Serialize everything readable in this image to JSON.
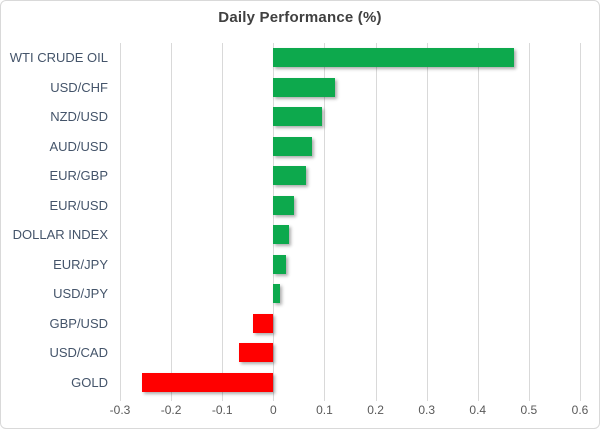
{
  "chart_data": {
    "type": "bar",
    "orientation": "horizontal",
    "title": "Daily Performance (%)",
    "categories": [
      "WTI CRUDE OIL",
      "USD/CHF",
      "NZD/USD",
      "AUD/USD",
      "EUR/GBP",
      "EUR/USD",
      "DOLLAR INDEX",
      "EUR/JPY",
      "USD/JPY",
      "GBP/USD",
      "USD/CAD",
      "GOLD"
    ],
    "values": [
      0.47,
      0.12,
      0.095,
      0.075,
      0.063,
      0.041,
      0.031,
      0.024,
      0.014,
      -0.039,
      -0.068,
      -0.257
    ],
    "xlabel": "",
    "ylabel": "",
    "xlim": [
      -0.3,
      0.6
    ],
    "xticks": [
      -0.3,
      -0.2,
      -0.1,
      0,
      0.1,
      0.2,
      0.3,
      0.4,
      0.5,
      0.6
    ],
    "xtick_labels": [
      "-0.3",
      "-0.2",
      "-0.1",
      "0",
      "0.1",
      "0.2",
      "0.3",
      "0.4",
      "0.5",
      "0.6"
    ],
    "grid": true,
    "legend": false,
    "positive_color": "#0DA94D",
    "negative_color": "#FF0000",
    "gridline_color": "#D9D9D9",
    "title_color": "#404040",
    "category_label_color": "#44546A",
    "tick_label_color": "#595959"
  }
}
